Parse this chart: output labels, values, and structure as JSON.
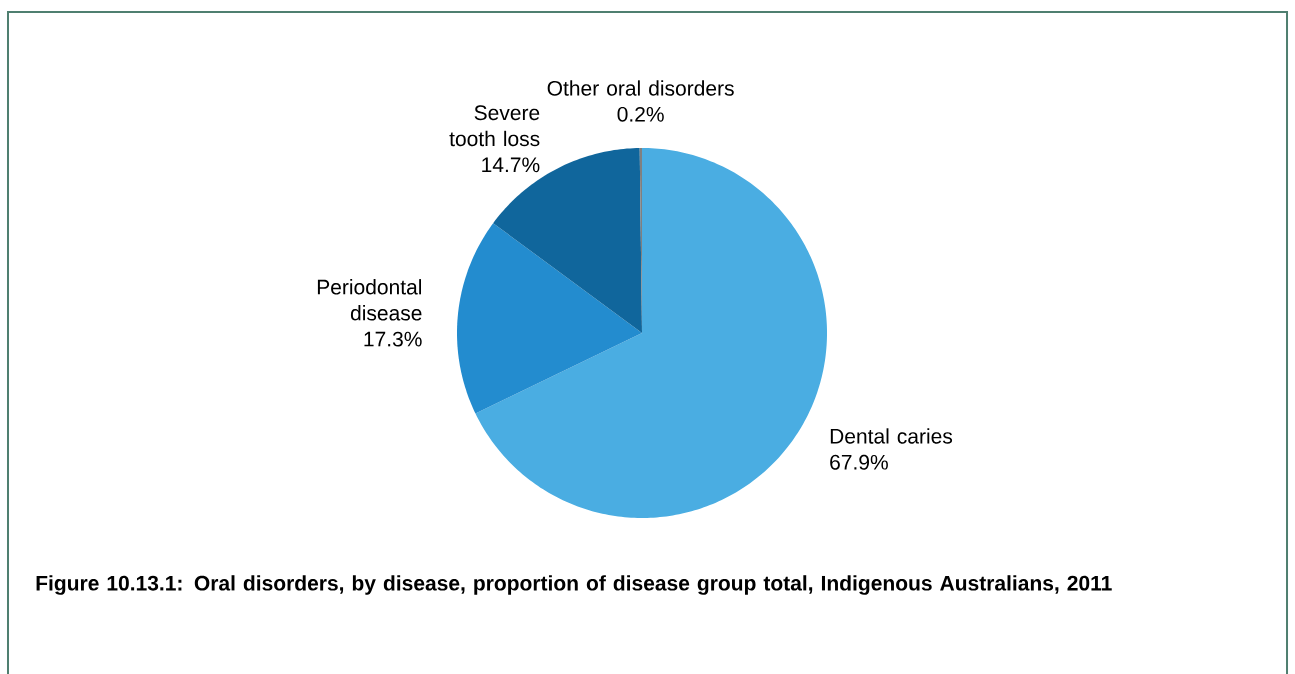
{
  "chart_data": {
    "type": "pie",
    "title": "Figure 10.13.1: Oral disorders, by disease, proportion of disease group total, Indigenous Australians, 2011",
    "categories": [
      "Dental caries",
      "Periodontal disease",
      "Severe tooth loss",
      "Other oral disorders"
    ],
    "values": [
      67.9,
      17.3,
      14.7,
      0.2
    ],
    "value_labels": [
      "67.9%",
      "17.3%",
      "14.7%",
      "0.2%"
    ],
    "colors": [
      "#4aade2",
      "#238ccf",
      "#10669c",
      "#808080"
    ]
  }
}
